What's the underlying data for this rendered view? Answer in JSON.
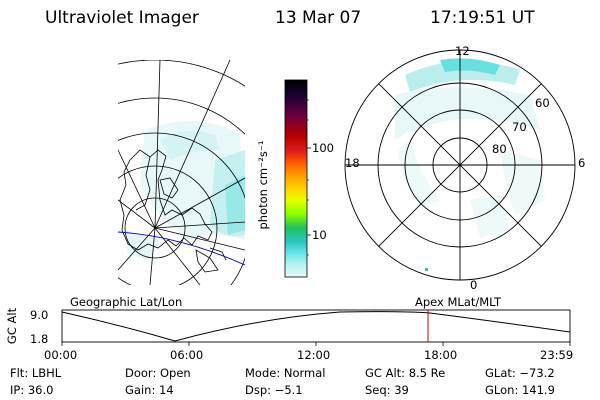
{
  "header": {
    "title": "Ultraviolet Imager",
    "date": "13 Mar 07",
    "time": "17:19:51 UT"
  },
  "colorbar": {
    "unit_label": "photon cm⁻²s⁻¹",
    "ticks": [
      "100",
      "10"
    ],
    "stops": [
      "#000000",
      "#1a0033",
      "#6b003f",
      "#b30000",
      "#e01b1b",
      "#ff5a00",
      "#ff9a00",
      "#ffd200",
      "#e8ff00",
      "#8cff00",
      "#21c05c",
      "#27c9c0",
      "#69e6e6",
      "#bdf2f2",
      "#e6fafa"
    ]
  },
  "maps": {
    "left_caption": "Geographic Lat/Lon",
    "right_caption": "Apex MLat/MLT",
    "polar_labels": {
      "top": "12",
      "bottom": "0",
      "left": "18",
      "right": "6",
      "lat60": "60",
      "lat70": "70",
      "lat80": "80"
    }
  },
  "timeline": {
    "y_label": "GC Alt",
    "y_ticks": [
      "9.0",
      "1.8"
    ],
    "x_ticks": [
      "00:00",
      "06:00",
      "12:00",
      "18:00",
      "23:59"
    ],
    "current_time_hours": 17.33
  },
  "info": {
    "filter": {
      "label": "Flt:",
      "value": "LBHL"
    },
    "door": {
      "label": "Door:",
      "value": "Open"
    },
    "mode": {
      "label": "Mode:",
      "value": "Normal"
    },
    "gc_alt": {
      "label": "GC Alt:",
      "value": "8.5 Re"
    },
    "glat": {
      "label": "GLat:",
      "value": "−73.2"
    },
    "ip": {
      "label": "IP:",
      "value": "36.0"
    },
    "gain": {
      "label": "Gain:",
      "value": "14"
    },
    "dsp": {
      "label": "Dsp:",
      "value": "−5.1"
    },
    "seq": {
      "label": "Seq:",
      "value": "39"
    },
    "glon": {
      "label": "GLon:",
      "value": "141.9"
    }
  }
}
